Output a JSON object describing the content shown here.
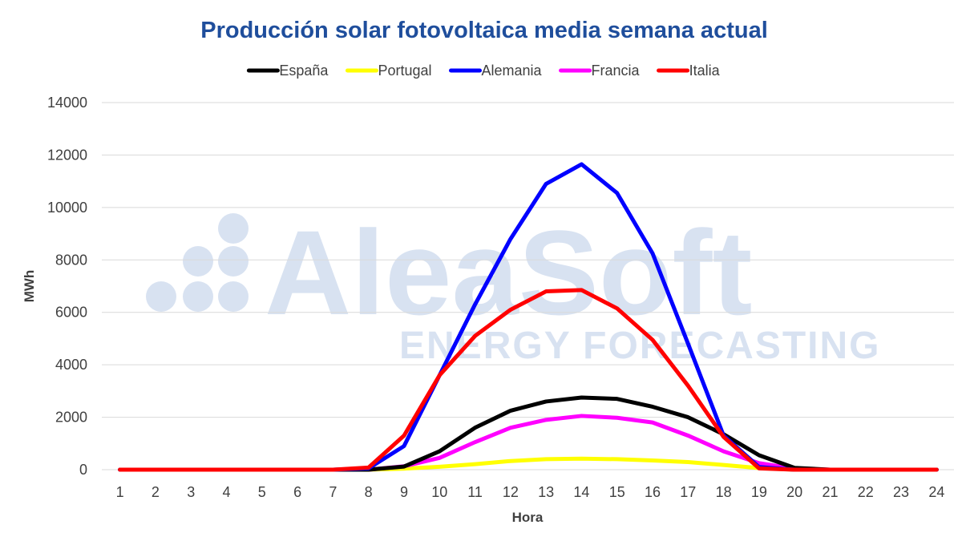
{
  "watermark": {
    "brand": "AleaSoft",
    "tagline": "ENERGY FORECASTING"
  },
  "chart_data": {
    "type": "line",
    "title": "Producción solar fotovoltaica media semana actual",
    "xlabel": "Hora",
    "ylabel": "MWh",
    "ylim": [
      0,
      14000
    ],
    "yticks": [
      0,
      2000,
      4000,
      6000,
      8000,
      10000,
      12000,
      14000
    ],
    "grid": true,
    "legend_position": "top",
    "categories": [
      "1",
      "2",
      "3",
      "4",
      "5",
      "6",
      "7",
      "8",
      "9",
      "10",
      "11",
      "12",
      "13",
      "14",
      "15",
      "16",
      "17",
      "18",
      "19",
      "20",
      "21",
      "22",
      "23",
      "24"
    ],
    "series": [
      {
        "name": "España",
        "color": "#000000",
        "values": [
          0,
          0,
          0,
          0,
          0,
          0,
          0,
          0,
          120,
          700,
          1600,
          2250,
          2600,
          2750,
          2700,
          2400,
          2000,
          1350,
          550,
          70,
          0,
          0,
          0,
          0
        ]
      },
      {
        "name": "Portugal",
        "color": "#ffff00",
        "values": [
          0,
          0,
          0,
          0,
          0,
          0,
          0,
          0,
          40,
          110,
          210,
          330,
          400,
          420,
          400,
          350,
          290,
          180,
          60,
          0,
          0,
          0,
          0,
          0
        ]
      },
      {
        "name": "Alemania",
        "color": "#0000ff",
        "values": [
          0,
          0,
          0,
          0,
          0,
          0,
          0,
          50,
          900,
          3600,
          6300,
          8800,
          10900,
          11650,
          10550,
          8250,
          4800,
          1300,
          100,
          0,
          0,
          0,
          0,
          0
        ]
      },
      {
        "name": "Francia",
        "color": "#ff00ff",
        "values": [
          0,
          0,
          0,
          0,
          0,
          0,
          0,
          0,
          130,
          450,
          1050,
          1600,
          1900,
          2050,
          1980,
          1800,
          1300,
          700,
          250,
          40,
          0,
          0,
          0,
          0
        ]
      },
      {
        "name": "Italia",
        "color": "#ff0000",
        "values": [
          0,
          0,
          0,
          0,
          0,
          0,
          0,
          80,
          1300,
          3600,
          5100,
          6100,
          6800,
          6850,
          6150,
          4950,
          3200,
          1250,
          50,
          0,
          0,
          0,
          0,
          0
        ]
      }
    ]
  }
}
